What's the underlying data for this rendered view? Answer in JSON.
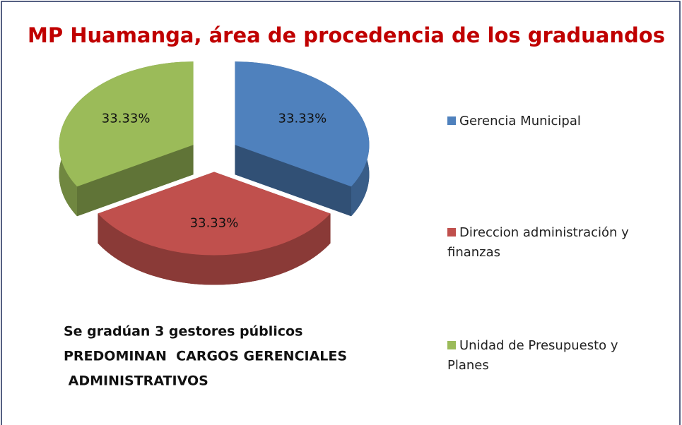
{
  "chart_data": {
    "type": "pie",
    "title": "MP Huamanga, área de procedencia de los graduandos",
    "categories": [
      "Gerencia Municipal",
      "Direccion administración  y finanzas",
      "Unidad de Presupuesto y Planes"
    ],
    "values": [
      33.33,
      33.33,
      33.33
    ],
    "value_labels": [
      "33.33%",
      "33.33%",
      "33.33%"
    ],
    "colors": [
      "#4f81bd",
      "#c0504d",
      "#9bbb59"
    ],
    "legend": "right",
    "annotations": [
      "Se gradúan 3 gestores públicos",
      "PREDOMINAN  CARGOS GERENCIALES",
      " ADMINISTRATIVOS"
    ]
  }
}
